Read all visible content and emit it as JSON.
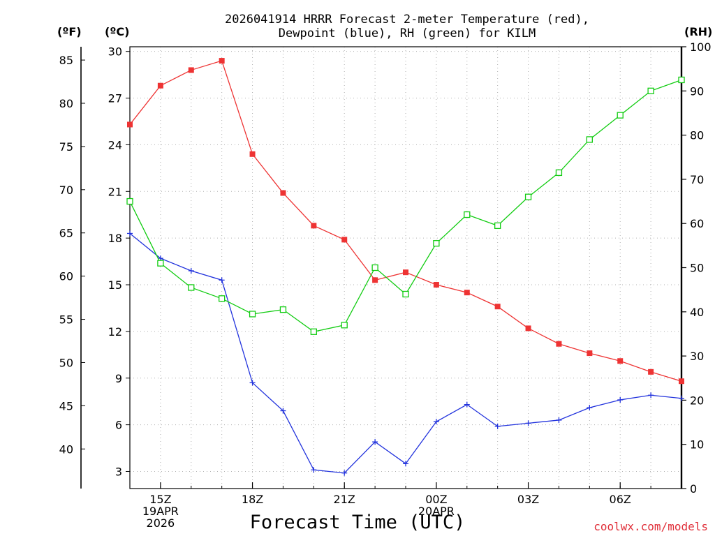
{
  "chart_data": {
    "type": "line",
    "title_line1": "2026041914 HRRR Forecast 2-meter Temperature (red),",
    "title_line2": "Dewpoint (blue), RH (green) for KILM",
    "xlabel": "Forecast Time (UTC)",
    "credit": "coolwx.com/models",
    "left_unit_f": "(ºF)",
    "left_unit_c": "(ºC)",
    "right_unit": "(RH)",
    "hours": [
      14,
      15,
      16,
      17,
      18,
      19,
      20,
      21,
      22,
      23,
      24,
      25,
      26,
      27,
      28,
      29,
      30,
      31,
      32
    ],
    "x_range": [
      14,
      32
    ],
    "celsius_range": [
      1.9,
      30.3
    ],
    "celsius_ticks": [
      3,
      6,
      9,
      12,
      15,
      18,
      21,
      24,
      27,
      30
    ],
    "fahrenheit_ticks": [
      40,
      45,
      50,
      55,
      60,
      65,
      70,
      75,
      80,
      85
    ],
    "rh_range": [
      0,
      100
    ],
    "rh_ticks": [
      0,
      10,
      20,
      30,
      40,
      50,
      60,
      70,
      80,
      90,
      100
    ],
    "x_ticks": [
      {
        "hour": 15,
        "lines": [
          "15Z",
          "19APR",
          "2026"
        ]
      },
      {
        "hour": 18,
        "lines": [
          "18Z"
        ]
      },
      {
        "hour": 21,
        "lines": [
          "21Z"
        ]
      },
      {
        "hour": 24,
        "lines": [
          "00Z",
          "20APR"
        ]
      },
      {
        "hour": 27,
        "lines": [
          "03Z"
        ]
      },
      {
        "hour": 30,
        "lines": [
          "06Z"
        ]
      }
    ],
    "series": [
      {
        "name": "2-meter Temperature",
        "unit": "C",
        "color": "#ee3333",
        "marker": "filled-square",
        "values": [
          25.3,
          27.8,
          28.8,
          29.4,
          23.4,
          20.9,
          18.8,
          17.9,
          15.3,
          15.8,
          15.0,
          14.5,
          13.6,
          12.2,
          11.2,
          10.6,
          10.1,
          9.4,
          8.8
        ]
      },
      {
        "name": "Dewpoint",
        "unit": "C",
        "color": "#2233dd",
        "marker": "plus",
        "values": [
          18.3,
          16.7,
          15.9,
          15.3,
          8.7,
          6.9,
          3.1,
          2.9,
          4.9,
          3.5,
          6.2,
          7.3,
          5.9,
          6.1,
          6.3,
          7.1,
          7.6,
          7.9,
          7.7
        ]
      },
      {
        "name": "RH",
        "unit": "%",
        "color": "#11cc11",
        "marker": "open-square",
        "values": [
          65,
          51,
          45.5,
          43,
          39.5,
          40.5,
          35.5,
          37,
          50,
          44,
          55.5,
          62,
          59.5,
          66,
          71.5,
          79,
          84.5,
          90,
          92.5
        ]
      }
    ]
  }
}
